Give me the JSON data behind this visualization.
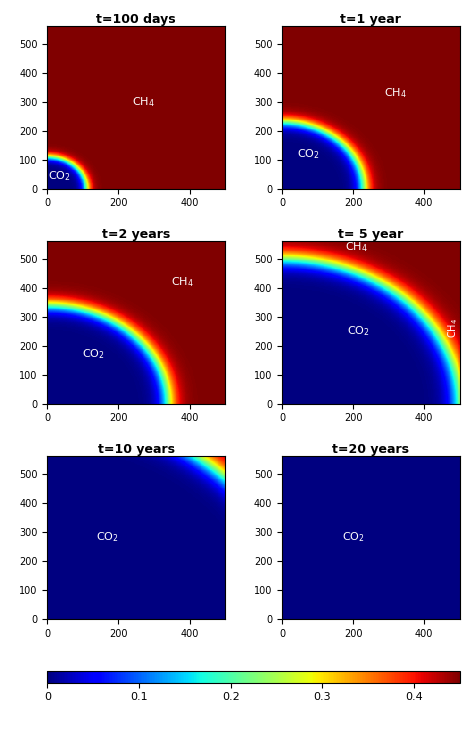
{
  "titles": [
    "t=100 days",
    "t=1 year",
    "t=2 years",
    "t= 5 year",
    "t=10 years",
    "t=20 years"
  ],
  "grid_size": 200,
  "x_max": 500,
  "y_max": 560,
  "x_ticks": [
    0,
    200,
    400
  ],
  "y_ticks": [
    0,
    100,
    200,
    300,
    400,
    500
  ],
  "vmin": 0.0,
  "vmax": 0.45,
  "colorbar_ticks": [
    0,
    0.1,
    0.2,
    0.3,
    0.4
  ],
  "colorbar_ticklabels": [
    "0",
    "0.1",
    "0.2",
    "0.3",
    "0.4"
  ],
  "ch4_label": "CH$_4$",
  "co2_label": "CO$_2$",
  "title_fontsize": 9,
  "radii": [
    110,
    230,
    340,
    500,
    700,
    900
  ],
  "transition_widths": [
    8,
    12,
    15,
    18,
    20,
    20
  ],
  "ch4_positions": [
    [
      270,
      300
    ],
    [
      320,
      330
    ],
    [
      380,
      420
    ],
    [
      210,
      540
    ],
    null,
    null
  ],
  "ch4_rotations": [
    0,
    0,
    0,
    0,
    0,
    0
  ],
  "ch4_side_positions": [
    null,
    null,
    null,
    [
      480,
      260
    ],
    null,
    null
  ],
  "co2_positions": [
    [
      35,
      45
    ],
    [
      75,
      120
    ],
    [
      130,
      170
    ],
    [
      215,
      250
    ],
    [
      170,
      280
    ],
    [
      200,
      280
    ]
  ],
  "ch4_colors": [
    "white",
    "white",
    "white",
    "white",
    "white",
    "white"
  ],
  "co2_colors": [
    "white",
    "white",
    "white",
    "white",
    "white",
    "white"
  ]
}
